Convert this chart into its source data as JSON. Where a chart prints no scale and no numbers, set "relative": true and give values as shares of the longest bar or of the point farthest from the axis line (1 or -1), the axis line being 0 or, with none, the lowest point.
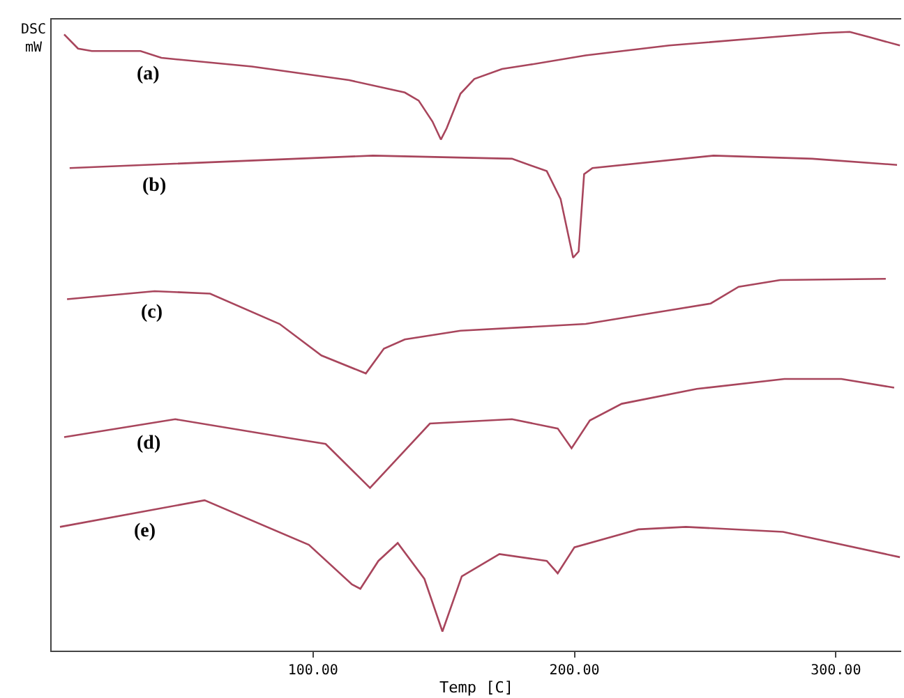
{
  "chart_data": {
    "type": "line",
    "relative": true,
    "xlabel": "Temp [C]",
    "ylabel": "DSC\nmW",
    "xlim": [
      0,
      325
    ],
    "xticks": [
      {
        "value": 100,
        "label": "100.00"
      },
      {
        "value": 200,
        "label": "200.00"
      },
      {
        "value": 300,
        "label": "300.00"
      }
    ],
    "legend": false,
    "marker": "none",
    "line_style": "solid",
    "series": [
      {
        "name": "(a)",
        "color": "#a8455c",
        "x": [
          4.8,
          10.1,
          15.4,
          34,
          42,
          76.6,
          113.8,
          135.1,
          140.4,
          145.7,
          148.9,
          151.1,
          156.4,
          161.7,
          172.3,
          183,
          204.3,
          236.2,
          268.1,
          294.7,
          305.3,
          313.3,
          324.5
        ],
        "values": [
          0.996,
          0.973,
          0.969,
          0.969,
          0.958,
          0.944,
          0.922,
          0.902,
          0.889,
          0.855,
          0.826,
          0.844,
          0.9,
          0.924,
          0.94,
          0.947,
          0.962,
          0.978,
          0.989,
          0.998,
          1.0,
          0.991,
          0.978
        ]
      },
      {
        "name": "(b)",
        "color": "#a8455c",
        "x": [
          6.9,
          122.9,
          176.1,
          189.4,
          194.7,
          199.5,
          201.6,
          203.7,
          206.9,
          253.2,
          291,
          323.4
        ],
        "values": [
          0.78,
          0.8,
          0.795,
          0.775,
          0.73,
          0.635,
          0.645,
          0.77,
          0.78,
          0.8,
          0.795,
          0.785
        ]
      },
      {
        "name": "(c)",
        "color": "#a8455c",
        "x": [
          5.9,
          39.4,
          60.6,
          87.2,
          103.2,
          120.2,
          127.1,
          135.1,
          156.4,
          204.3,
          236.2,
          252.1,
          262.8,
          278.7,
          319.1
        ],
        "values": [
          0.568,
          0.581,
          0.577,
          0.528,
          0.477,
          0.448,
          0.488,
          0.503,
          0.517,
          0.528,
          0.55,
          0.561,
          0.588,
          0.599,
          0.601
        ]
      },
      {
        "name": "(d)",
        "color": "#a8455c",
        "x": [
          4.8,
          47.3,
          91.5,
          104.8,
          121.8,
          144.7,
          176.1,
          193.6,
          198.9,
          205.9,
          218.1,
          246.8,
          280.3,
          302.1,
          322.3
        ],
        "values": [
          0.345,
          0.374,
          0.343,
          0.334,
          0.263,
          0.367,
          0.374,
          0.359,
          0.327,
          0.372,
          0.399,
          0.423,
          0.439,
          0.439,
          0.425
        ]
      },
      {
        "name": "(e)",
        "color": "#a8455c",
        "x": [
          3.2,
          58.5,
          98.4,
          114.9,
          118.1,
          125,
          132.4,
          142.6,
          149.5,
          156.9,
          171.3,
          189.4,
          193.6,
          200,
          224.5,
          242.6,
          279.8,
          324.5
        ],
        "values": [
          0.2,
          0.243,
          0.171,
          0.107,
          0.1,
          0.145,
          0.174,
          0.116,
          0.031,
          0.12,
          0.156,
          0.145,
          0.125,
          0.167,
          0.196,
          0.2,
          0.192,
          0.151
        ]
      }
    ]
  }
}
